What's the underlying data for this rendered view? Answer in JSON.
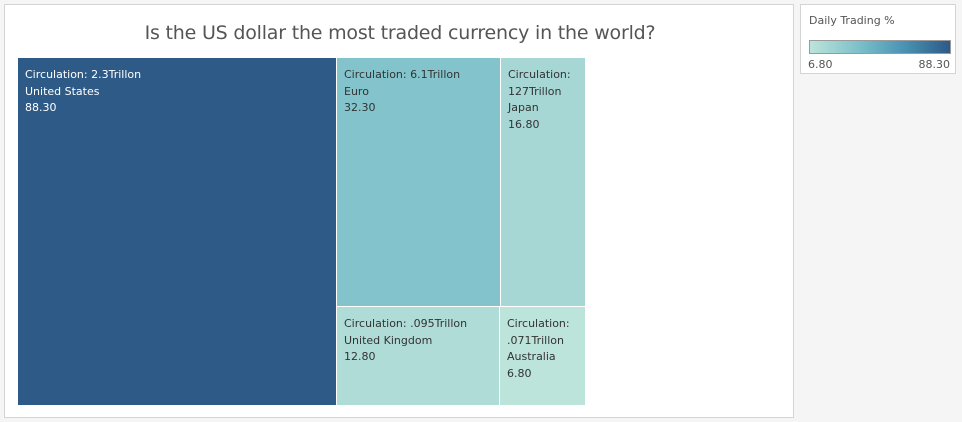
{
  "chart_data": {
    "type": "treemap",
    "title": "Is the US dollar the most traded currency in the world?",
    "measure": "Daily Trading %",
    "items": [
      {
        "country": "United States",
        "circulation": "Circulation: 2.3Trillon",
        "value_label": "88.30",
        "value": 88.3
      },
      {
        "country": "Euro",
        "circulation": "Circulation: 6.1Trillon",
        "value_label": "32.30",
        "value": 32.3
      },
      {
        "country": "Japan",
        "circulation_lines": [
          "Circulation:",
          "127Trillon"
        ],
        "value_label": "16.80",
        "value": 16.8
      },
      {
        "country": "United Kingdom",
        "circulation": "Circulation: .095Trillon",
        "value_label": "12.80",
        "value": 12.8
      },
      {
        "country": "Australia",
        "circulation_lines": [
          "Circulation:",
          ".071Trillon"
        ],
        "value_label": "6.80",
        "value": 6.8
      }
    ]
  },
  "legend": {
    "title": "Daily Trading %",
    "min_label": "6.80",
    "max_label": "88.30",
    "min_value": 6.8,
    "max_value": 88.3,
    "colors": [
      "#bce4da",
      "#7fc2cb",
      "#4a94b4",
      "#2d5a86"
    ]
  }
}
